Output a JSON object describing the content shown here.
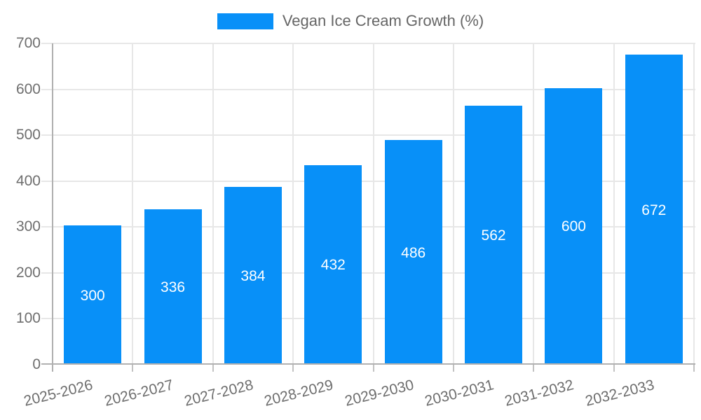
{
  "legend": {
    "label": "Vegan Ice Cream Growth (%)"
  },
  "chart_data": {
    "type": "bar",
    "title": "Vegan Ice Cream Growth (%)",
    "categories": [
      "2025-2026",
      "2026-2027",
      "2027-2028",
      "2028-2029",
      "2029-2030",
      "2030-2031",
      "2031-2032",
      "2032-2033"
    ],
    "values": [
      300,
      336,
      384,
      432,
      486,
      562,
      600,
      672
    ],
    "xlabel": "",
    "ylabel": "",
    "ylim": [
      0,
      700
    ],
    "yticks": [
      0,
      100,
      200,
      300,
      400,
      500,
      600,
      700
    ],
    "grid": true,
    "legend_position": "top",
    "style": {
      "bar_color": "#0890f8",
      "value_label_color": "#ffffff",
      "grid_color": "#e7e7e7",
      "axis_color": "#b0b0b0",
      "tick_label_color": "#6e6e6e",
      "legend_text_color": "#666666",
      "background": "#ffffff"
    }
  }
}
